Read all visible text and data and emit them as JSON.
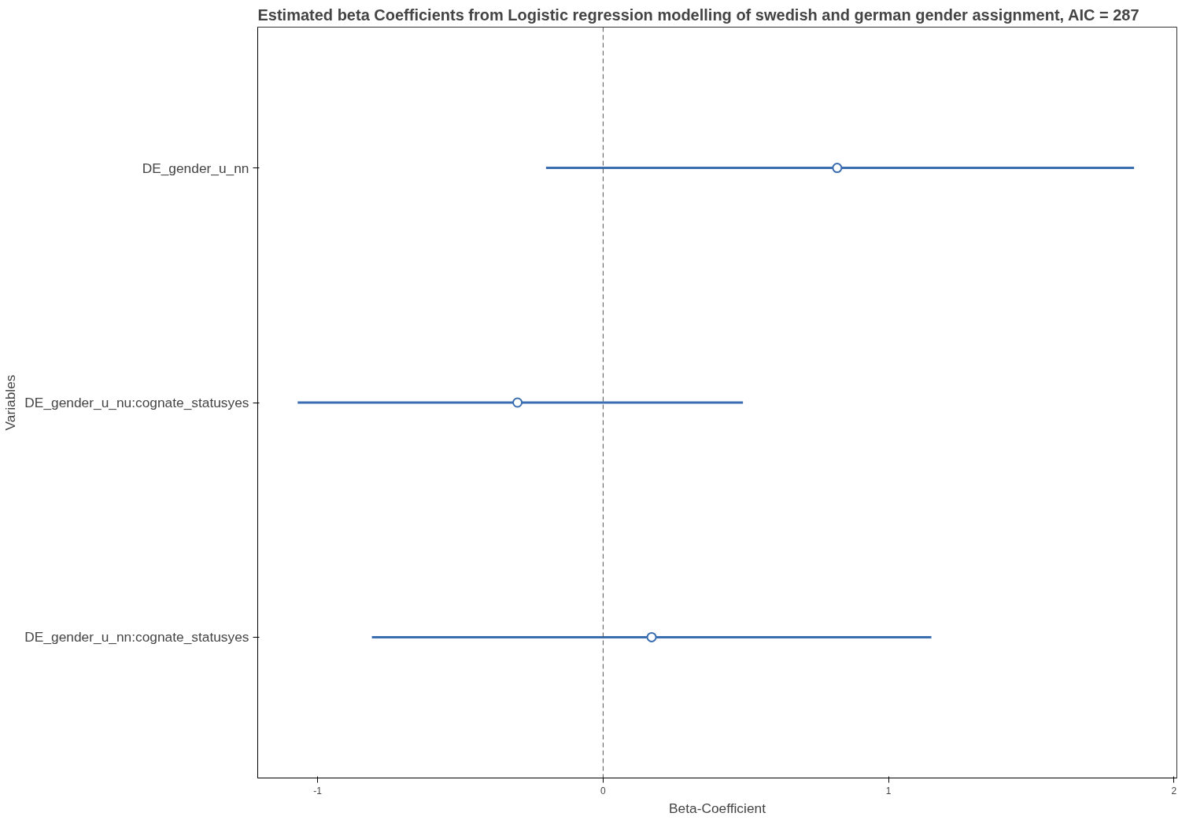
{
  "chart_data": {
    "type": "scatter",
    "orientation": "horizontal",
    "title": "Estimated beta Coefficients from Logistic regression modelling of swedish and german gender assignment, AIC = 287",
    "xlabel": "Beta-Coefficient",
    "ylabel": "Variables",
    "categories": [
      "DE_gender_u_nn",
      "DE_gender_u_nu:cognate_statusyes",
      "DE_gender_u_nn:cognate_statusyes"
    ],
    "values": [
      0.82,
      -0.3,
      0.17
    ],
    "errors": [
      [
        -0.2,
        1.86
      ],
      [
        -1.07,
        0.49
      ],
      [
        -0.81,
        1.15
      ]
    ],
    "color": "#3a6eb0",
    "marker": "circle",
    "grid": false,
    "xlim": [
      -1.21,
      2.01
    ],
    "xticks": [
      -1,
      0,
      1,
      2
    ],
    "ref_lines": [
      {
        "axis": "x",
        "value": 0,
        "line_style": "dashed",
        "color": "#555555"
      }
    ]
  }
}
